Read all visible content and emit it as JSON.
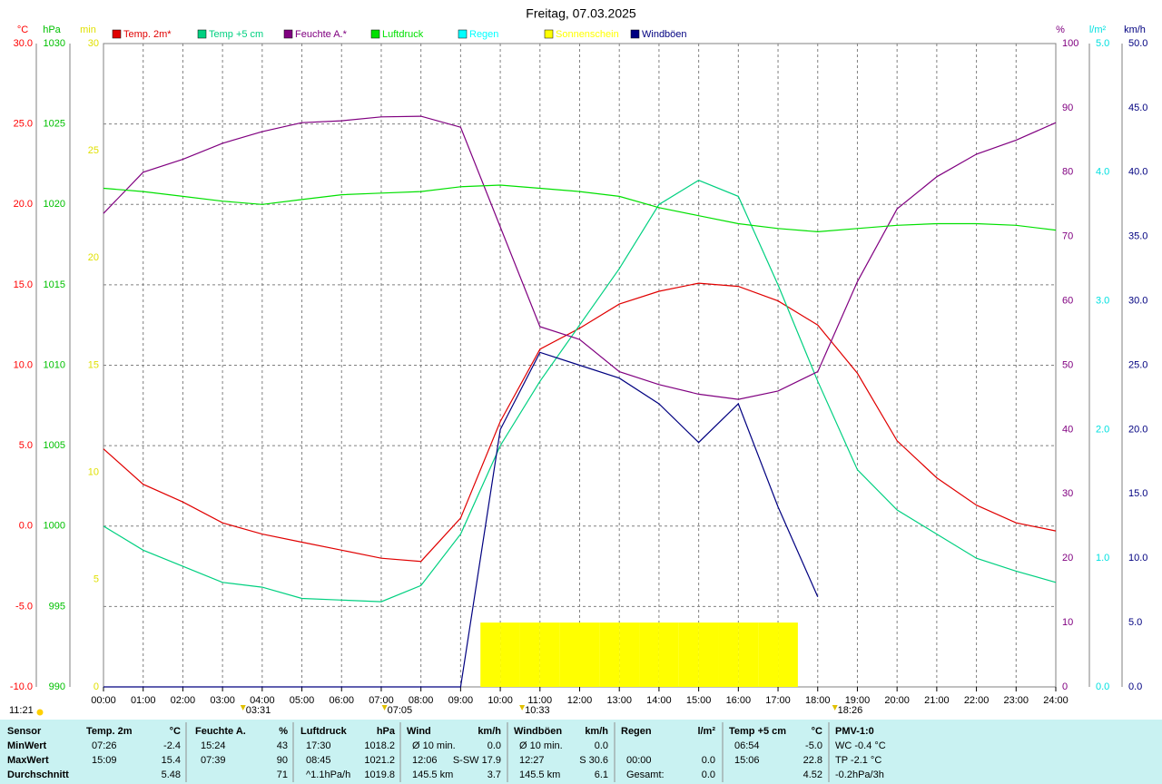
{
  "chart_data": {
    "type": "line",
    "title": "Freitag, 07.03.2025",
    "grid": true,
    "xlim": [
      0,
      24
    ],
    "xticks": [
      {
        "value": 0,
        "label": "00:00"
      },
      {
        "value": 1,
        "label": "01:00"
      },
      {
        "value": 2,
        "label": "02:00"
      },
      {
        "value": 3,
        "label": "03:00"
      },
      {
        "value": 4,
        "label": "04:00"
      },
      {
        "value": 5,
        "label": "05:00"
      },
      {
        "value": 6,
        "label": "06:00"
      },
      {
        "value": 7,
        "label": "07:00"
      },
      {
        "value": 8,
        "label": "08:00"
      },
      {
        "value": 9,
        "label": "09:00"
      },
      {
        "value": 10,
        "label": "10:00"
      },
      {
        "value": 11,
        "label": "11:00"
      },
      {
        "value": 12,
        "label": "12:00"
      },
      {
        "value": 13,
        "label": "13:00"
      },
      {
        "value": 14,
        "label": "14:00"
      },
      {
        "value": 15,
        "label": "15:00"
      },
      {
        "value": 16,
        "label": "16:00"
      },
      {
        "value": 17,
        "label": "17:00"
      },
      {
        "value": 18,
        "label": "18:00"
      },
      {
        "value": 19,
        "label": "19:00"
      },
      {
        "value": 20,
        "label": "20:00"
      },
      {
        "value": 21,
        "label": "21:00"
      },
      {
        "value": 22,
        "label": "22:00"
      },
      {
        "value": 23,
        "label": "23:00"
      },
      {
        "value": 24,
        "label": "24:00"
      }
    ],
    "axes": {
      "temp": {
        "label": "°C",
        "color": "#ff0000",
        "lim": [
          -10,
          30
        ],
        "ticks": [
          {
            "value": -10,
            "label": "-10.0"
          },
          {
            "value": -5,
            "label": "-5.0"
          },
          {
            "value": 0,
            "label": "0.0"
          },
          {
            "value": 5,
            "label": "5.0"
          },
          {
            "value": 10,
            "label": "10.0"
          },
          {
            "value": 15,
            "label": "15.0"
          },
          {
            "value": 20,
            "label": "20.0"
          },
          {
            "value": 25,
            "label": "25.0"
          },
          {
            "value": 30,
            "label": "30.0"
          }
        ]
      },
      "press": {
        "label": "hPa",
        "color": "#00c000",
        "lim": [
          990,
          1030
        ],
        "ticks": [
          990,
          995,
          1000,
          1005,
          1010,
          1015,
          1020,
          1025,
          1030
        ]
      },
      "min": {
        "label": "min",
        "color": "#e0e000",
        "lim": [
          0,
          30
        ],
        "ticks": [
          0,
          5,
          10,
          15,
          20,
          25,
          30
        ]
      },
      "hum": {
        "label": "%",
        "color": "#800080",
        "lim": [
          0,
          100
        ],
        "ticks": [
          0,
          10,
          20,
          30,
          40,
          50,
          60,
          70,
          80,
          90,
          100
        ]
      },
      "rain": {
        "label": "l/m²",
        "color": "#00e0e0",
        "lim": [
          0,
          5
        ],
        "ticks": [
          {
            "value": 0,
            "label": "0.0"
          },
          {
            "value": 1,
            "label": "1.0"
          },
          {
            "value": 2,
            "label": "2.0"
          },
          {
            "value": 3,
            "label": "3.0"
          },
          {
            "value": 4,
            "label": "4.0"
          },
          {
            "value": 5,
            "label": "5.0"
          }
        ]
      },
      "wind": {
        "label": "km/h",
        "color": "#000080",
        "lim": [
          0,
          50
        ],
        "ticks": [
          {
            "value": 0,
            "label": "0.0"
          },
          {
            "value": 5,
            "label": "5.0"
          },
          {
            "value": 10,
            "label": "10.0"
          },
          {
            "value": 15,
            "label": "15.0"
          },
          {
            "value": 20,
            "label": "20.0"
          },
          {
            "value": 25,
            "label": "25.0"
          },
          {
            "value": 30,
            "label": "30.0"
          },
          {
            "value": 35,
            "label": "35.0"
          },
          {
            "value": 40,
            "label": "40.0"
          },
          {
            "value": 45,
            "label": "45.0"
          },
          {
            "value": 50,
            "label": "50.0"
          }
        ]
      }
    },
    "x": [
      0,
      1,
      2,
      3,
      4,
      5,
      6,
      7,
      8,
      9,
      10,
      11,
      12,
      13,
      14,
      15,
      16,
      17,
      18,
      19,
      20,
      21,
      22,
      23,
      24
    ],
    "series": [
      {
        "name": "Temp. 2m*",
        "color": "#e00000",
        "axis": "temp",
        "values": [
          4.8,
          2.6,
          1.5,
          0.2,
          -0.5,
          -1.0,
          -1.5,
          -2.0,
          -2.2,
          0.5,
          6.5,
          11.0,
          12.3,
          13.8,
          14.6,
          15.1,
          14.9,
          14.0,
          12.5,
          9.5,
          5.3,
          3.0,
          1.3,
          0.2,
          -0.3
        ]
      },
      {
        "name": "Temp +5 cm",
        "color": "#00d080",
        "axis": "temp",
        "values": [
          0,
          -1.5,
          -2.5,
          -3.5,
          -3.8,
          -4.5,
          -4.6,
          -4.7,
          -3.7,
          -0.5,
          5.0,
          9.0,
          12.5,
          16.0,
          20.0,
          21.5,
          20.5,
          15.0,
          9.0,
          3.5,
          1.0,
          -0.5,
          -2.0,
          -2.8,
          -3.5
        ]
      },
      {
        "name": "Feuchte A.*",
        "color": "#800080",
        "axis": "hum",
        "values": [
          73.6,
          80,
          82,
          84.5,
          86.3,
          87.7,
          88,
          88.6,
          88.7,
          87,
          71.5,
          56,
          54,
          49,
          47,
          45.5,
          44.7,
          46,
          49,
          63,
          74.3,
          79.3,
          82.8,
          85,
          87.7
        ]
      },
      {
        "name": "Luftdruck",
        "color": "#00e000",
        "axis": "press",
        "values": [
          1021.0,
          1020.8,
          1020.5,
          1020.2,
          1020.0,
          1020.3,
          1020.6,
          1020.7,
          1020.8,
          1021.1,
          1021.2,
          1021.0,
          1020.8,
          1020.5,
          1019.8,
          1019.3,
          1018.8,
          1018.5,
          1018.3,
          1018.5,
          1018.7,
          1018.8,
          1018.8,
          1018.7,
          1018.4
        ]
      },
      {
        "name": "Regen",
        "color": "#00ffff",
        "axis": "rain"
      },
      {
        "name": "Sonnenschein",
        "color": "#ffff00",
        "axis": "min",
        "type": "bar",
        "x": [
          9.5,
          10,
          10.5,
          11,
          11.5,
          12,
          12.5,
          13,
          13.5,
          14,
          14.5,
          15,
          15.5,
          16,
          16.5,
          17
        ],
        "values": [
          3,
          3,
          3,
          3,
          3,
          3,
          3,
          3,
          3,
          3,
          3,
          3,
          3,
          3,
          3,
          3
        ]
      },
      {
        "name": "Windböen",
        "color": "#000080",
        "axis": "wind",
        "values": [
          0,
          0,
          0,
          0,
          0,
          0,
          0,
          0,
          0,
          0,
          20,
          26,
          25,
          24,
          22,
          19,
          22,
          14,
          7,
          null,
          null,
          null,
          null,
          null,
          null
        ]
      }
    ],
    "annotations": [
      {
        "x": 3.517,
        "label": "03:31"
      },
      {
        "x": 7.083,
        "label": "07:05"
      },
      {
        "x": 10.55,
        "label": "10:33"
      },
      {
        "x": 18.433,
        "label": "18:26"
      }
    ],
    "sun_duration": "11:21"
  },
  "table": {
    "sensor": "Sensor",
    "headers": [
      [
        "Temp. 2m",
        "°C"
      ],
      [
        "Feuchte A.",
        "%"
      ],
      [
        "Luftdruck",
        "hPa"
      ],
      [
        "Wind",
        "km/h"
      ],
      [
        "Windböen",
        "km/h"
      ],
      [
        "Regen",
        "l/m²"
      ],
      [
        "Temp +5 cm",
        "°C"
      ],
      [
        "PMV-1:0"
      ]
    ],
    "rows": [
      {
        "label": "MinWert",
        "cells": [
          [
            "07:26",
            "-2.4"
          ],
          [
            "15:24",
            "43"
          ],
          [
            "17:30",
            "1018.2"
          ],
          [
            "Ø 10 min.",
            "0.0"
          ],
          [
            "Ø 10 min.",
            "0.0"
          ],
          [],
          [
            "06:54",
            "-5.0"
          ],
          [
            "WC -0.4 °C"
          ]
        ]
      },
      {
        "label": "MaxWert",
        "cells": [
          [
            "15:09",
            "15.4"
          ],
          [
            "07:39",
            "90"
          ],
          [
            "08:45",
            "1021.2"
          ],
          [
            "12:06",
            "S-SW 17.9"
          ],
          [
            "12:27",
            "S 30.6"
          ],
          [
            "00:00",
            "0.0"
          ],
          [
            "15:06",
            "22.8"
          ],
          [
            "TP -2.1 °C"
          ]
        ]
      },
      {
        "label": "Durchschnitt",
        "cells": [
          [
            "5.48"
          ],
          [
            "71"
          ],
          [
            "^1.1hPa/h",
            "1019.8"
          ],
          [
            "145.5 km",
            "3.7"
          ],
          [
            "145.5 km",
            "6.1"
          ],
          [
            "Gesamt:",
            "0.0"
          ],
          [
            "4.52"
          ],
          [
            "-0.2hPa/3h"
          ]
        ]
      }
    ]
  }
}
